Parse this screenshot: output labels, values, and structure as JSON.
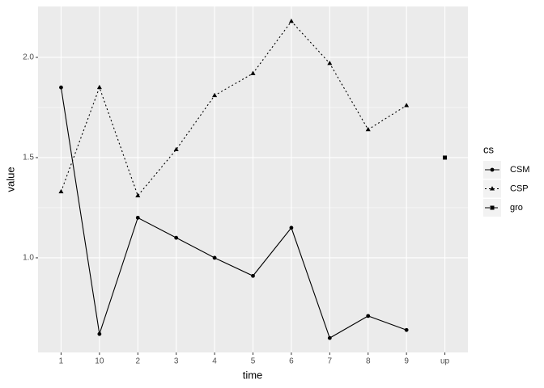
{
  "chart_data": {
    "type": "line",
    "x_label": "time",
    "y_label": "value",
    "categories": [
      "1",
      "10",
      "2",
      "3",
      "4",
      "5",
      "6",
      "7",
      "8",
      "9",
      "up"
    ],
    "series": [
      {
        "name": "CSM",
        "color": "#000000",
        "linetype": "solid",
        "shape": "circle",
        "values": [
          1.85,
          0.62,
          1.2,
          1.1,
          1.0,
          0.91,
          1.15,
          0.6,
          0.71,
          0.64,
          null
        ]
      },
      {
        "name": "CSP",
        "color": "#000000",
        "linetype": "dotted",
        "shape": "triangle",
        "values": [
          1.33,
          1.85,
          1.31,
          1.54,
          1.81,
          1.92,
          2.18,
          1.97,
          1.64,
          1.76,
          null
        ]
      },
      {
        "name": "gro",
        "color": "#000000",
        "linetype": "dashed",
        "shape": "square",
        "values": [
          null,
          null,
          null,
          null,
          null,
          null,
          null,
          null,
          null,
          null,
          1.5
        ]
      }
    ],
    "legend_title": "cs",
    "ylim": [
      0.528,
      2.254
    ],
    "yticks": [
      {
        "value": 1.0,
        "label": "1.0"
      },
      1.5,
      {
        "value": 2.0,
        "label": "2.0"
      }
    ],
    "grid": true,
    "legend": "right"
  }
}
